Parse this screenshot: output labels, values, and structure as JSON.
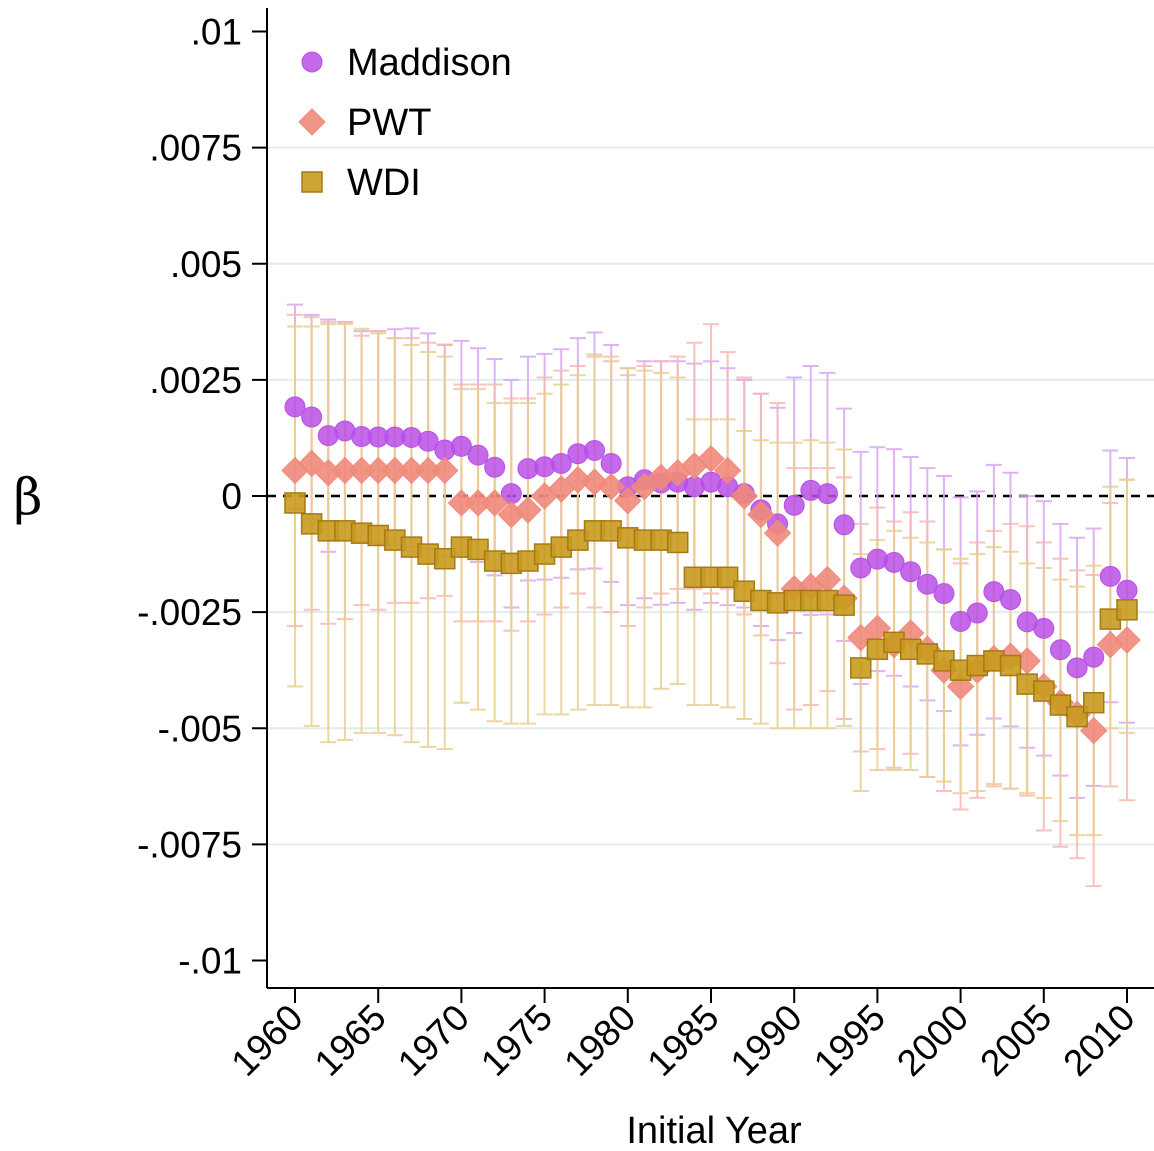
{
  "chart_data": {
    "type": "scatter",
    "xlabel": "Initial Year",
    "ylabel": "β",
    "xlim": [
      1958.4,
      2011.6
    ],
    "ylim": [
      -0.0105,
      0.0105
    ],
    "xticks": [
      1960,
      1965,
      1970,
      1975,
      1980,
      1985,
      1990,
      1995,
      2000,
      2005,
      2010
    ],
    "yticks": [
      0.01,
      0.0075,
      0.005,
      0.0025,
      0,
      -0.0025,
      -0.005,
      -0.0075,
      -0.01
    ],
    "ytick_labels": [
      ".01",
      ".0075",
      ".005",
      ".0025",
      "0",
      "-.0025",
      "-.005",
      "-.0075",
      "-.01"
    ],
    "grid": true,
    "reference_line": 0,
    "legend_position": "top-left",
    "series": [
      {
        "name": "Maddison",
        "marker": "circle",
        "color": "#b94fe6",
        "errorbar_color": "#d9a6f2",
        "points": [
          [
            1960,
            0.00192,
            0.00412,
            -0.00028
          ],
          [
            1961,
            0.0017,
            0.0039,
            -0.0005
          ],
          [
            1962,
            0.0013,
            0.0038,
            -0.0012
          ],
          [
            1963,
            0.0014,
            0.00374,
            -0.00094
          ],
          [
            1964,
            0.00128,
            0.00355,
            -0.00099
          ],
          [
            1965,
            0.00127,
            0.00355,
            -0.00101
          ],
          [
            1966,
            0.00127,
            0.00359,
            -0.00105
          ],
          [
            1967,
            0.00126,
            0.00361,
            -0.00109
          ],
          [
            1968,
            0.00118,
            0.0035,
            -0.00114
          ],
          [
            1969,
            0.00099,
            0.00326,
            -0.00128
          ],
          [
            1970,
            0.00107,
            0.00334,
            -0.0012
          ],
          [
            1971,
            0.00088,
            0.00318,
            -0.00142
          ],
          [
            1972,
            0.00062,
            0.00295,
            -0.00171
          ],
          [
            1973,
            5e-05,
            0.0025,
            -0.0024
          ],
          [
            1974,
            0.00059,
            0.003,
            -0.00182
          ],
          [
            1975,
            0.00063,
            0.00306,
            -0.0018
          ],
          [
            1976,
            0.0007,
            0.00316,
            -0.00176
          ],
          [
            1977,
            0.00091,
            0.0034,
            -0.00158
          ],
          [
            1978,
            0.00098,
            0.00352,
            -0.00156
          ],
          [
            1979,
            0.0007,
            0.00325,
            -0.00185
          ],
          [
            1980,
            0.0002,
            0.00275,
            -0.00235
          ],
          [
            1981,
            0.00035,
            0.0029,
            -0.0022
          ],
          [
            1982,
            0.00028,
            0.0029,
            -0.00234
          ],
          [
            1983,
            0.0003,
            0.0029,
            -0.0023
          ],
          [
            1984,
            0.0002,
            0.00285,
            -0.00245
          ],
          [
            1985,
            0.0003,
            0.0029,
            -0.0023
          ],
          [
            1986,
            0.0002,
            0.00275,
            -0.00235
          ],
          [
            1987,
            5e-05,
            0.0025,
            -0.0024
          ],
          [
            1988,
            -0.0003,
            0.0022,
            -0.0028
          ],
          [
            1989,
            -0.0006,
            0.0019,
            -0.0031
          ],
          [
            1990,
            -0.0002,
            0.00255,
            -0.00295
          ],
          [
            1991,
            0.00012,
            0.0028,
            -0.00256
          ],
          [
            1992,
            5e-05,
            0.00265,
            -0.00255
          ],
          [
            1993,
            -0.00062,
            0.00188,
            -0.00312
          ],
          [
            1994,
            -0.00155,
            0.00095,
            -0.00405
          ],
          [
            1995,
            -0.00136,
            0.00105,
            -0.00377
          ],
          [
            1996,
            -0.00143,
            0.00101,
            -0.00387
          ],
          [
            1997,
            -0.00163,
            0.00084,
            -0.0041
          ],
          [
            1998,
            -0.0019,
            0.0006,
            -0.0044
          ],
          [
            1999,
            -0.0021,
            0.00043,
            -0.00463
          ],
          [
            2000,
            -0.0027,
            -3e-05,
            -0.00537
          ],
          [
            2001,
            -0.00252,
            0.0001,
            -0.00514
          ],
          [
            2002,
            -0.00206,
            0.00067,
            -0.00479
          ],
          [
            2003,
            -0.00223,
            0.0005,
            -0.00496
          ],
          [
            2004,
            -0.00271,
            0.0,
            -0.00542
          ],
          [
            2005,
            -0.00285,
            -0.00011,
            -0.00559
          ],
          [
            2006,
            -0.00331,
            -0.0006,
            -0.00602
          ],
          [
            2007,
            -0.0037,
            -0.0009,
            -0.0065
          ],
          [
            2008,
            -0.00347,
            -0.0007,
            -0.00624
          ],
          [
            2009,
            -0.00173,
            0.00098,
            -0.00444
          ],
          [
            2010,
            -0.00203,
            0.00082,
            -0.00488
          ]
        ]
      },
      {
        "name": "PWT",
        "marker": "diamond",
        "color": "#f08a7c",
        "errorbar_color": "#f6b9b0",
        "points": [
          [
            1960,
            0.00055,
            0.0039,
            -0.0028
          ],
          [
            1961,
            0.0007,
            0.00385,
            -0.00245
          ],
          [
            1962,
            0.0005,
            0.00375,
            -0.00275
          ],
          [
            1963,
            0.00055,
            0.00375,
            -0.00265
          ],
          [
            1964,
            0.00055,
            0.00345,
            -0.00235
          ],
          [
            1965,
            0.00055,
            0.00355,
            -0.00245
          ],
          [
            1966,
            0.00055,
            0.0034,
            -0.0023
          ],
          [
            1967,
            0.00055,
            0.0034,
            -0.0023
          ],
          [
            1968,
            0.00055,
            0.0033,
            -0.0022
          ],
          [
            1969,
            0.00055,
            0.00325,
            -0.00215
          ],
          [
            1970,
            -0.00015,
            0.0024,
            -0.0027
          ],
          [
            1971,
            -0.00015,
            0.0024,
            -0.0027
          ],
          [
            1972,
            -0.00015,
            0.0024,
            -0.0027
          ],
          [
            1973,
            -0.0004,
            0.0021,
            -0.0029
          ],
          [
            1974,
            -0.0003,
            0.0021,
            -0.0027
          ],
          [
            1975,
            0.0,
            0.00255,
            -0.00255
          ],
          [
            1976,
            0.00015,
            0.0027,
            -0.0024
          ],
          [
            1977,
            0.00035,
            0.0028,
            -0.0021
          ],
          [
            1978,
            0.0003,
            0.003,
            -0.0024
          ],
          [
            1979,
            0.0002,
            0.0029,
            -0.0025
          ],
          [
            1980,
            -0.0001,
            0.0026,
            -0.0028
          ],
          [
            1981,
            0.0002,
            0.0028,
            -0.0024
          ],
          [
            1982,
            0.0004,
            0.0029,
            -0.0021
          ],
          [
            1983,
            0.0005,
            0.003,
            -0.002
          ],
          [
            1984,
            0.00065,
            0.0033,
            -0.002
          ],
          [
            1985,
            0.0008,
            0.0037,
            -0.0021
          ],
          [
            1986,
            0.00055,
            0.0031,
            -0.002
          ],
          [
            1987,
            0.0,
            0.00255,
            -0.00255
          ],
          [
            1988,
            -0.0004,
            0.0022,
            -0.003
          ],
          [
            1989,
            -0.0008,
            0.002,
            -0.0036
          ],
          [
            1990,
            -0.002,
            0.0006,
            -0.0046
          ],
          [
            1991,
            -0.00195,
            0.0006,
            -0.0045
          ],
          [
            1992,
            -0.0018,
            0.0006,
            -0.0042
          ],
          [
            1993,
            -0.0022,
            0.0004,
            -0.0048
          ],
          [
            1994,
            -0.00305,
            -0.0006,
            -0.0055
          ],
          [
            1995,
            -0.00285,
            -0.00025,
            -0.00545
          ],
          [
            1996,
            -0.0032,
            -0.00055,
            -0.00585
          ],
          [
            1997,
            -0.00295,
            -0.00035,
            -0.00555
          ],
          [
            1998,
            -0.0033,
            -0.00055,
            -0.00605
          ],
          [
            1999,
            -0.00375,
            -0.00115,
            -0.00635
          ],
          [
            2000,
            -0.0041,
            -0.00145,
            -0.00675
          ],
          [
            2001,
            -0.00375,
            -0.001,
            -0.0065
          ],
          [
            2002,
            -0.0035,
            -0.00075,
            -0.00625
          ],
          [
            2003,
            -0.00345,
            -0.0006,
            -0.0063
          ],
          [
            2004,
            -0.00355,
            -0.00065,
            -0.00645
          ],
          [
            2005,
            -0.0041,
            -0.001,
            -0.0072
          ],
          [
            2006,
            -0.00445,
            -0.00135,
            -0.00755
          ],
          [
            2007,
            -0.0047,
            -0.0016,
            -0.0078
          ],
          [
            2008,
            -0.00505,
            -0.0017,
            -0.0084
          ],
          [
            2009,
            -0.0032,
            -0.00015,
            -0.00625
          ],
          [
            2010,
            -0.0031,
            0.00035,
            -0.00655
          ]
        ]
      },
      {
        "name": "WDI",
        "marker": "square",
        "color": "#c99a1f",
        "errorbar_color": "#e9cf8f",
        "points": [
          [
            1960,
            -0.00015,
            0.00365,
            -0.0041
          ],
          [
            1961,
            -0.0006,
            0.00365,
            -0.00495
          ],
          [
            1962,
            -0.00075,
            0.0037,
            -0.0053
          ],
          [
            1963,
            -0.00075,
            0.0037,
            -0.00525
          ],
          [
            1964,
            -0.0008,
            0.0036,
            -0.0051
          ],
          [
            1965,
            -0.00085,
            0.0035,
            -0.0051
          ],
          [
            1966,
            -0.00095,
            0.0034,
            -0.00515
          ],
          [
            1967,
            -0.0011,
            0.00325,
            -0.0053
          ],
          [
            1968,
            -0.00125,
            0.0031,
            -0.0054
          ],
          [
            1969,
            -0.00135,
            0.003,
            -0.00545
          ],
          [
            1970,
            -0.0011,
            0.0023,
            -0.00445
          ],
          [
            1971,
            -0.00115,
            0.0023,
            -0.0046
          ],
          [
            1972,
            -0.0014,
            0.002,
            -0.00485
          ],
          [
            1973,
            -0.00145,
            0.002,
            -0.0049
          ],
          [
            1974,
            -0.0014,
            0.002,
            -0.0049
          ],
          [
            1975,
            -0.00125,
            0.0022,
            -0.0047
          ],
          [
            1976,
            -0.0011,
            0.0024,
            -0.0047
          ],
          [
            1977,
            -0.00095,
            0.0026,
            -0.0046
          ],
          [
            1978,
            -0.00075,
            0.00305,
            -0.0045
          ],
          [
            1979,
            -0.00075,
            0.003,
            -0.0045
          ],
          [
            1980,
            -0.0009,
            0.00275,
            -0.00455
          ],
          [
            1981,
            -0.00095,
            0.0027,
            -0.00455
          ],
          [
            1982,
            -0.00095,
            0.00265,
            -0.00415
          ],
          [
            1983,
            -0.001,
            0.00255,
            -0.00405
          ],
          [
            1984,
            -0.00175,
            0.00165,
            -0.0045
          ],
          [
            1985,
            -0.00175,
            0.00165,
            -0.0045
          ],
          [
            1986,
            -0.00175,
            0.00165,
            -0.00455
          ],
          [
            1987,
            -0.00205,
            0.0014,
            -0.0048
          ],
          [
            1988,
            -0.00225,
            0.0012,
            -0.0049
          ],
          [
            1989,
            -0.0023,
            0.00115,
            -0.005
          ],
          [
            1990,
            -0.00225,
            0.00115,
            -0.005
          ],
          [
            1991,
            -0.00225,
            0.0012,
            -0.005
          ],
          [
            1992,
            -0.00225,
            0.00115,
            -0.005
          ],
          [
            1993,
            -0.00235,
            0.001,
            -0.00495
          ],
          [
            1994,
            -0.0037,
            -0.00125,
            -0.00635
          ],
          [
            1995,
            -0.0033,
            -0.00095,
            -0.0059
          ],
          [
            1996,
            -0.00315,
            -0.00075,
            -0.0059
          ],
          [
            1997,
            -0.0033,
            -0.0009,
            -0.0059
          ],
          [
            1998,
            -0.0034,
            -0.001,
            -0.00605
          ],
          [
            1999,
            -0.00355,
            -0.00115,
            -0.00615
          ],
          [
            2000,
            -0.00375,
            -0.00135,
            -0.0064
          ],
          [
            2001,
            -0.00365,
            -0.00125,
            -0.00635
          ],
          [
            2002,
            -0.00355,
            -0.0011,
            -0.0062
          ],
          [
            2003,
            -0.00365,
            -0.0012,
            -0.0063
          ],
          [
            2004,
            -0.00405,
            -0.00145,
            -0.0064
          ],
          [
            2005,
            -0.0042,
            -0.00155,
            -0.0065
          ],
          [
            2006,
            -0.0045,
            -0.0018,
            -0.007
          ],
          [
            2007,
            -0.00475,
            -0.00195,
            -0.0073
          ],
          [
            2008,
            -0.00445,
            -0.0015,
            -0.0073
          ],
          [
            2009,
            -0.00265,
            0.0002,
            -0.005
          ],
          [
            2010,
            -0.00245,
            0.00035,
            -0.0051
          ]
        ]
      }
    ]
  }
}
